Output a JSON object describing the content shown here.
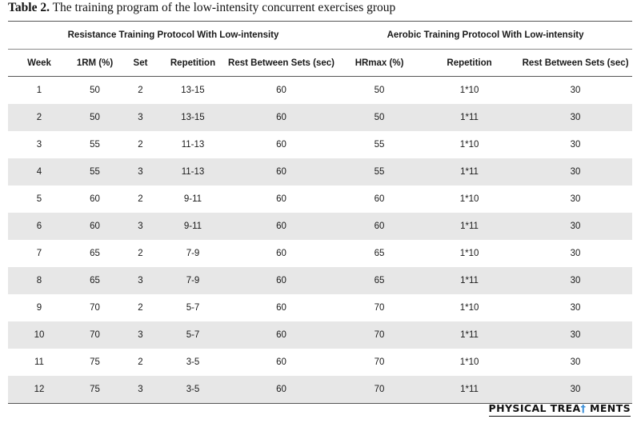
{
  "caption": {
    "label": "Table 2.",
    "text": " The training program of the low-intensity concurrent exercises group"
  },
  "table": {
    "group_headers": {
      "resistance": "Resistance Training Protocol With Low-intensity",
      "aerobic": "Aerobic Training Protocol With Low-intensity"
    },
    "columns": [
      "Week",
      "1RM (%)",
      "Set",
      "Repetition",
      "Rest Between Sets (sec)",
      "HRmax (%)",
      "Repetition",
      "Rest Between Sets (sec)"
    ],
    "rows": [
      [
        "1",
        "50",
        "2",
        "13-15",
        "60",
        "50",
        "1*10",
        "30"
      ],
      [
        "2",
        "50",
        "3",
        "13-15",
        "60",
        "50",
        "1*11",
        "30"
      ],
      [
        "3",
        "55",
        "2",
        "11-13",
        "60",
        "55",
        "1*10",
        "30"
      ],
      [
        "4",
        "55",
        "3",
        "11-13",
        "60",
        "55",
        "1*11",
        "30"
      ],
      [
        "5",
        "60",
        "2",
        "9-11",
        "60",
        "60",
        "1*10",
        "30"
      ],
      [
        "6",
        "60",
        "3",
        "9-11",
        "60",
        "60",
        "1*11",
        "30"
      ],
      [
        "7",
        "65",
        "2",
        "7-9",
        "60",
        "65",
        "1*10",
        "30"
      ],
      [
        "8",
        "65",
        "3",
        "7-9",
        "60",
        "65",
        "1*11",
        "30"
      ],
      [
        "9",
        "70",
        "2",
        "5-7",
        "60",
        "70",
        "1*10",
        "30"
      ],
      [
        "10",
        "70",
        "3",
        "5-7",
        "60",
        "70",
        "1*11",
        "30"
      ],
      [
        "11",
        "75",
        "2",
        "3-5",
        "60",
        "70",
        "1*10",
        "30"
      ],
      [
        "12",
        "75",
        "3",
        "3-5",
        "60",
        "70",
        "1*11",
        "30"
      ]
    ]
  },
  "branding": {
    "part1": "PHYSICAL TREA",
    "mark": "†",
    "part2": " MENTS",
    "accent_color": "#3a8fd8"
  }
}
